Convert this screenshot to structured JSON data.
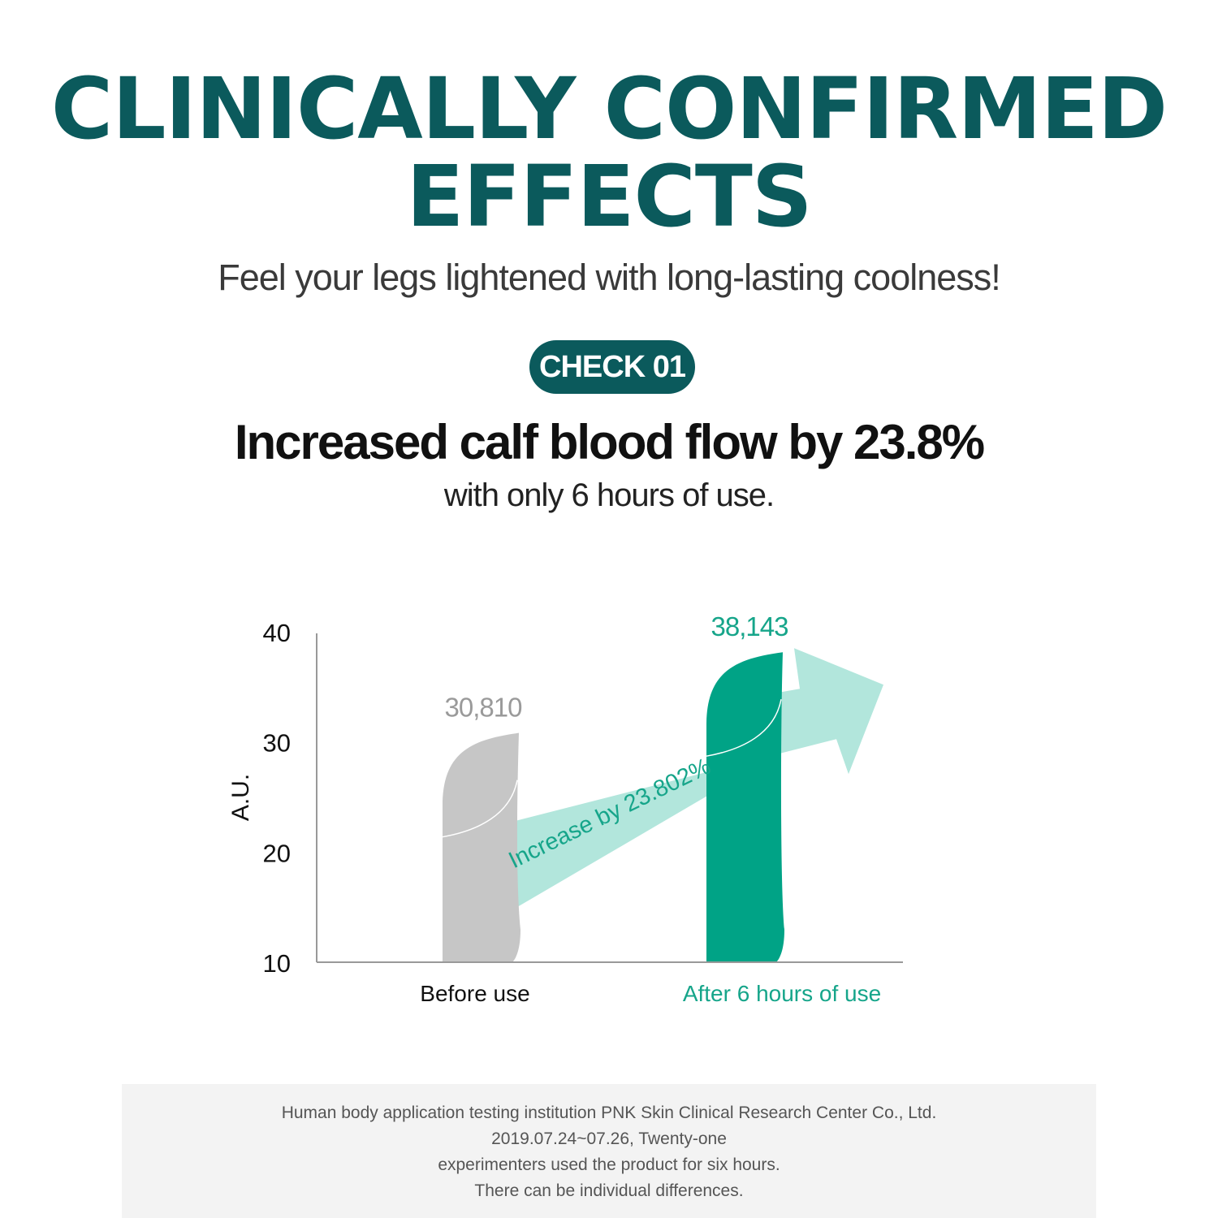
{
  "header": {
    "headline_line1": "CLINICALLY CONFIRMED",
    "headline_line2": "EFFECTS",
    "tagline": "Feel your legs lightened with long-lasting coolness!"
  },
  "check": {
    "badge": "CHECK 01",
    "claim": "Increased calf blood flow by 23.8%",
    "claim_sub": "with only 6 hours of use."
  },
  "colors": {
    "brand": "#0b5a5c",
    "before_bar": "#c6c6c6",
    "after_bar": "#00a386",
    "arrow": "#b2e6dc"
  },
  "chart_data": {
    "type": "bar",
    "categories": [
      "Before use",
      "After 6 hours of use"
    ],
    "values": [
      30.81,
      38.143
    ],
    "value_labels": [
      "30,810",
      "38,143"
    ],
    "ylabel": "A.U.",
    "ylim": [
      10,
      40
    ],
    "yticks": [
      10,
      20,
      30,
      40
    ],
    "annotation": "Increase by 23.802%"
  },
  "footnote": {
    "lines": [
      "Human body application testing institution PNK Skin Clinical Research Center Co., Ltd.",
      "2019.07.24~07.26, Twenty-one",
      "experimenters used the product for six hours.",
      "There can be individual differences."
    ]
  }
}
